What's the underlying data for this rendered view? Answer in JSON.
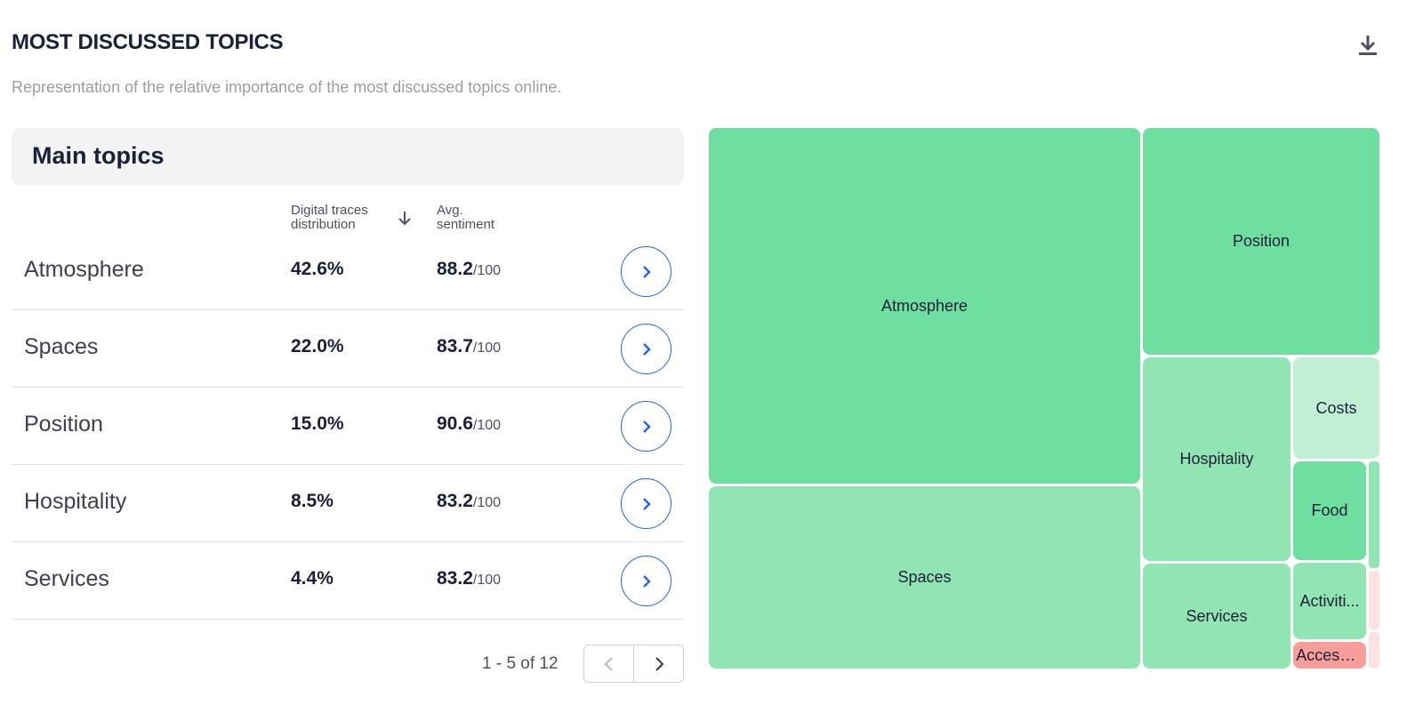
{
  "header": {
    "title": "MOST DISCUSSED TOPICS",
    "subtitle": "Representation of the relative importance of the most discussed topics online."
  },
  "panel": {
    "title": "Main topics",
    "columns": {
      "digital_line1": "Digital traces",
      "digital_line2": "distribution",
      "avg_line1": "Avg.",
      "avg_line2": "sentiment"
    },
    "sort_icon": "arrow-down-icon",
    "rows": [
      {
        "name": "Atmosphere",
        "pct": "42.6%",
        "sentiment": "88.2",
        "den": "/100"
      },
      {
        "name": "Spaces",
        "pct": "22.0%",
        "sentiment": "83.7",
        "den": "/100"
      },
      {
        "name": "Position",
        "pct": "15.0%",
        "sentiment": "90.6",
        "den": "/100"
      },
      {
        "name": "Hospitality",
        "pct": "8.5%",
        "sentiment": "83.2",
        "den": "/100"
      },
      {
        "name": "Services",
        "pct": "4.4%",
        "sentiment": "83.2",
        "den": "/100"
      }
    ],
    "pagination": {
      "label": "1 - 5 of 12"
    }
  },
  "treemap": {
    "tiles": [
      {
        "label": "Atmosphere"
      },
      {
        "label": "Position"
      },
      {
        "label": "Spaces"
      },
      {
        "label": "Hospitality"
      },
      {
        "label": "Costs"
      },
      {
        "label": "Food"
      },
      {
        "label": "Activiti..."
      },
      {
        "label": "Services"
      },
      {
        "label": "Accessi..."
      },
      {
        "label": ""
      },
      {
        "label": ""
      },
      {
        "label": ""
      }
    ]
  },
  "colors": {
    "accent": "#2563eb",
    "green_strong": "#6fdf9f",
    "green_medium": "#90e5b3",
    "green_light": "#c1efd3",
    "red": "#f79e9b",
    "red_light": "#fbe1df"
  }
}
